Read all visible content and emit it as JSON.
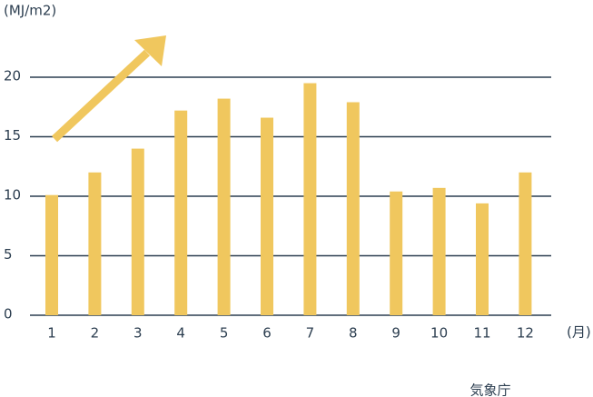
{
  "chart_data": {
    "type": "bar",
    "y_label": "(MJ/m2)",
    "x_label": "(月)",
    "source": "気象庁",
    "categories": [
      "1",
      "2",
      "3",
      "4",
      "5",
      "6",
      "7",
      "8",
      "9",
      "10",
      "11",
      "12"
    ],
    "values": [
      10.1,
      12.0,
      14.0,
      17.2,
      18.2,
      16.6,
      19.5,
      17.9,
      10.4,
      10.7,
      9.4,
      12.0
    ],
    "color": "#f0c75e",
    "ylim": [
      0,
      20
    ],
    "yticks": [
      0,
      5,
      10,
      15,
      20
    ],
    "grid": true
  }
}
